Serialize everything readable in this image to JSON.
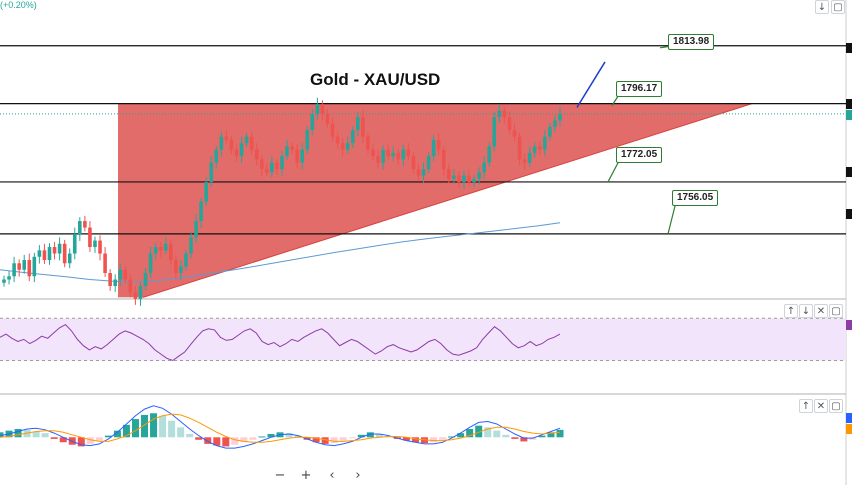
{
  "header": {
    "change_label": "(+0.20%)"
  },
  "colors": {
    "bull": "#26a69a",
    "bear": "#ef5350",
    "triangle": "#d9423f",
    "ma": "#5b9bd5",
    "rsi": "#8e3aa7",
    "macd": "#2962ff",
    "signal": "#ff9800",
    "label_border": "#2e7d32",
    "trend_arrow": "#1e3dc8"
  },
  "nav": {
    "minus": "−",
    "plus": "+",
    "prev": "‹",
    "next": "›"
  },
  "pane_buttons": {
    "main": [
      "↓",
      "▢"
    ],
    "rsi": [
      "↑",
      "↓",
      "✕",
      "▢"
    ],
    "macd": [
      "↑",
      "✕",
      "▢"
    ]
  },
  "chart_data": [
    {
      "type": "candlestick",
      "title": "Gold - XAU/USD",
      "levels": [
        {
          "label": "1813.98",
          "value": 1813.98
        },
        {
          "label": "1796.17",
          "value": 1796.17
        },
        {
          "label": "1772.05",
          "value": 1772.05
        },
        {
          "label": "1756.05",
          "value": 1756.05
        }
      ],
      "pattern": "ascending-triangle",
      "triangle": {
        "resistance": 1796.17,
        "support_start": 1736.5,
        "support_end": 1796.17
      },
      "close_series": [
        1742,
        1743,
        1747,
        1745,
        1748,
        1743,
        1749,
        1751,
        1748,
        1752,
        1750,
        1753,
        1747,
        1750,
        1756,
        1760,
        1758,
        1752,
        1754,
        1750,
        1744,
        1740,
        1742,
        1745,
        1742,
        1738,
        1736,
        1740,
        1744,
        1750,
        1752,
        1751,
        1753,
        1748,
        1744,
        1746,
        1750,
        1755,
        1760,
        1766,
        1772,
        1778,
        1782,
        1786,
        1785,
        1782,
        1780,
        1784,
        1786,
        1782,
        1779,
        1776,
        1775,
        1778,
        1776,
        1780,
        1783,
        1782,
        1778,
        1782,
        1788,
        1793,
        1796,
        1793,
        1790,
        1786,
        1784,
        1782,
        1784,
        1788,
        1792,
        1786,
        1782,
        1780,
        1778,
        1782,
        1780,
        1781,
        1779,
        1782,
        1780,
        1776,
        1774,
        1776,
        1780,
        1785,
        1782,
        1776,
        1773,
        1774,
        1772,
        1774,
        1772,
        1773,
        1775,
        1778,
        1783,
        1792,
        1794,
        1792,
        1788,
        1786,
        1779,
        1778,
        1781,
        1783,
        1782,
        1786,
        1789,
        1791,
        1793
      ],
      "ma_series": [
        1745,
        1744.2,
        1743.5,
        1742.8,
        1742,
        1741.5,
        1741.2,
        1741.6,
        1742.4,
        1743.4,
        1744.5,
        1745.6,
        1746.8,
        1748,
        1749.2,
        1750.4,
        1751.5,
        1752.6,
        1753.6,
        1754.5,
        1755.3,
        1756.1,
        1756.9,
        1757.7,
        1758.5,
        1759.5
      ],
      "ylim": [
        1736,
        1825
      ]
    },
    {
      "type": "line",
      "name_hidden": true,
      "series": [
        {
          "values": [
            52,
            55,
            51,
            48,
            50,
            46,
            49,
            53,
            51,
            56,
            61,
            64,
            58,
            50,
            44,
            40,
            43,
            41,
            45,
            50,
            55,
            58,
            56,
            53,
            50,
            46,
            40,
            36,
            32,
            30,
            34,
            38,
            45,
            52,
            58,
            60,
            59,
            52,
            49,
            50,
            54,
            58,
            60,
            56,
            48,
            45,
            47,
            43,
            46,
            50,
            48,
            52,
            55,
            58,
            60,
            56,
            50,
            44,
            47,
            50,
            48,
            44,
            40,
            36,
            39,
            43,
            45,
            42,
            40,
            38,
            40,
            44,
            48,
            50,
            46,
            40,
            36,
            35,
            37,
            39,
            42,
            50,
            56,
            62,
            58,
            52,
            46,
            42,
            44,
            48,
            44,
            46,
            50,
            52,
            55
          ]
        }
      ],
      "ylim": [
        20,
        75
      ]
    },
    {
      "type": "bar",
      "histogram": [
        0.6,
        0.8,
        1.0,
        0.9,
        0.7,
        0.5,
        -0.2,
        -0.6,
        -0.9,
        -1.1,
        -0.8,
        -0.4,
        0.2,
        0.8,
        1.5,
        2.2,
        2.7,
        2.9,
        2.6,
        2.0,
        1.2,
        0.4,
        -0.3,
        -0.8,
        -1.0,
        -1.1,
        -0.9,
        -0.6,
        -0.3,
        0.1,
        0.4,
        0.6,
        0.5,
        0.2,
        -0.3,
        -0.6,
        -0.8,
        -0.7,
        -0.4,
        -0.1,
        0.3,
        0.6,
        0.4,
        0.1,
        -0.2,
        -0.4,
        -0.6,
        -0.7,
        -0.6,
        -0.3,
        0.1,
        0.5,
        1.0,
        1.4,
        1.2,
        0.8,
        0.3,
        -0.2,
        -0.5,
        -0.3,
        0.2,
        0.6,
        0.9
      ],
      "macd_line": [
        0.2,
        0.4,
        0.7,
        1.0,
        1.1,
        0.9,
        0.5,
        0.0,
        -0.5,
        -0.9,
        -1.0,
        -0.8,
        -0.2,
        0.6,
        1.6,
        2.6,
        3.4,
        3.8,
        3.5,
        2.8,
        1.9,
        1.0,
        0.2,
        -0.5,
        -1.0,
        -1.3,
        -1.3,
        -1.1,
        -0.8,
        -0.4,
        0.0,
        0.3,
        0.4,
        0.2,
        -0.2,
        -0.6,
        -0.9,
        -1.0,
        -0.8,
        -0.5,
        0.0,
        0.4,
        0.4,
        0.2,
        -0.1,
        -0.4,
        -0.6,
        -0.8,
        -0.8,
        -0.6,
        -0.1,
        0.5,
        1.2,
        1.8,
        1.9,
        1.6,
        1.0,
        0.4,
        -0.1,
        -0.1,
        0.3,
        0.7,
        1.1
      ],
      "signal_line": [
        0.0,
        0.1,
        0.3,
        0.5,
        0.7,
        0.8,
        0.8,
        0.6,
        0.3,
        0.0,
        -0.3,
        -0.5,
        -0.5,
        -0.2,
        0.2,
        0.8,
        1.5,
        2.2,
        2.6,
        2.8,
        2.7,
        2.3,
        1.8,
        1.2,
        0.6,
        0.1,
        -0.3,
        -0.5,
        -0.6,
        -0.6,
        -0.5,
        -0.3,
        -0.1,
        0.0,
        0.0,
        -0.1,
        -0.3,
        -0.5,
        -0.5,
        -0.4,
        -0.3,
        -0.1,
        0.0,
        0.1,
        0.1,
        0.0,
        -0.2,
        -0.3,
        -0.4,
        -0.4,
        -0.3,
        -0.1,
        0.2,
        0.6,
        1.0,
        1.2,
        1.2,
        1.0,
        0.7,
        0.5,
        0.4,
        0.5,
        0.6
      ],
      "ylim": [
        -2.5,
        4.5
      ]
    }
  ]
}
